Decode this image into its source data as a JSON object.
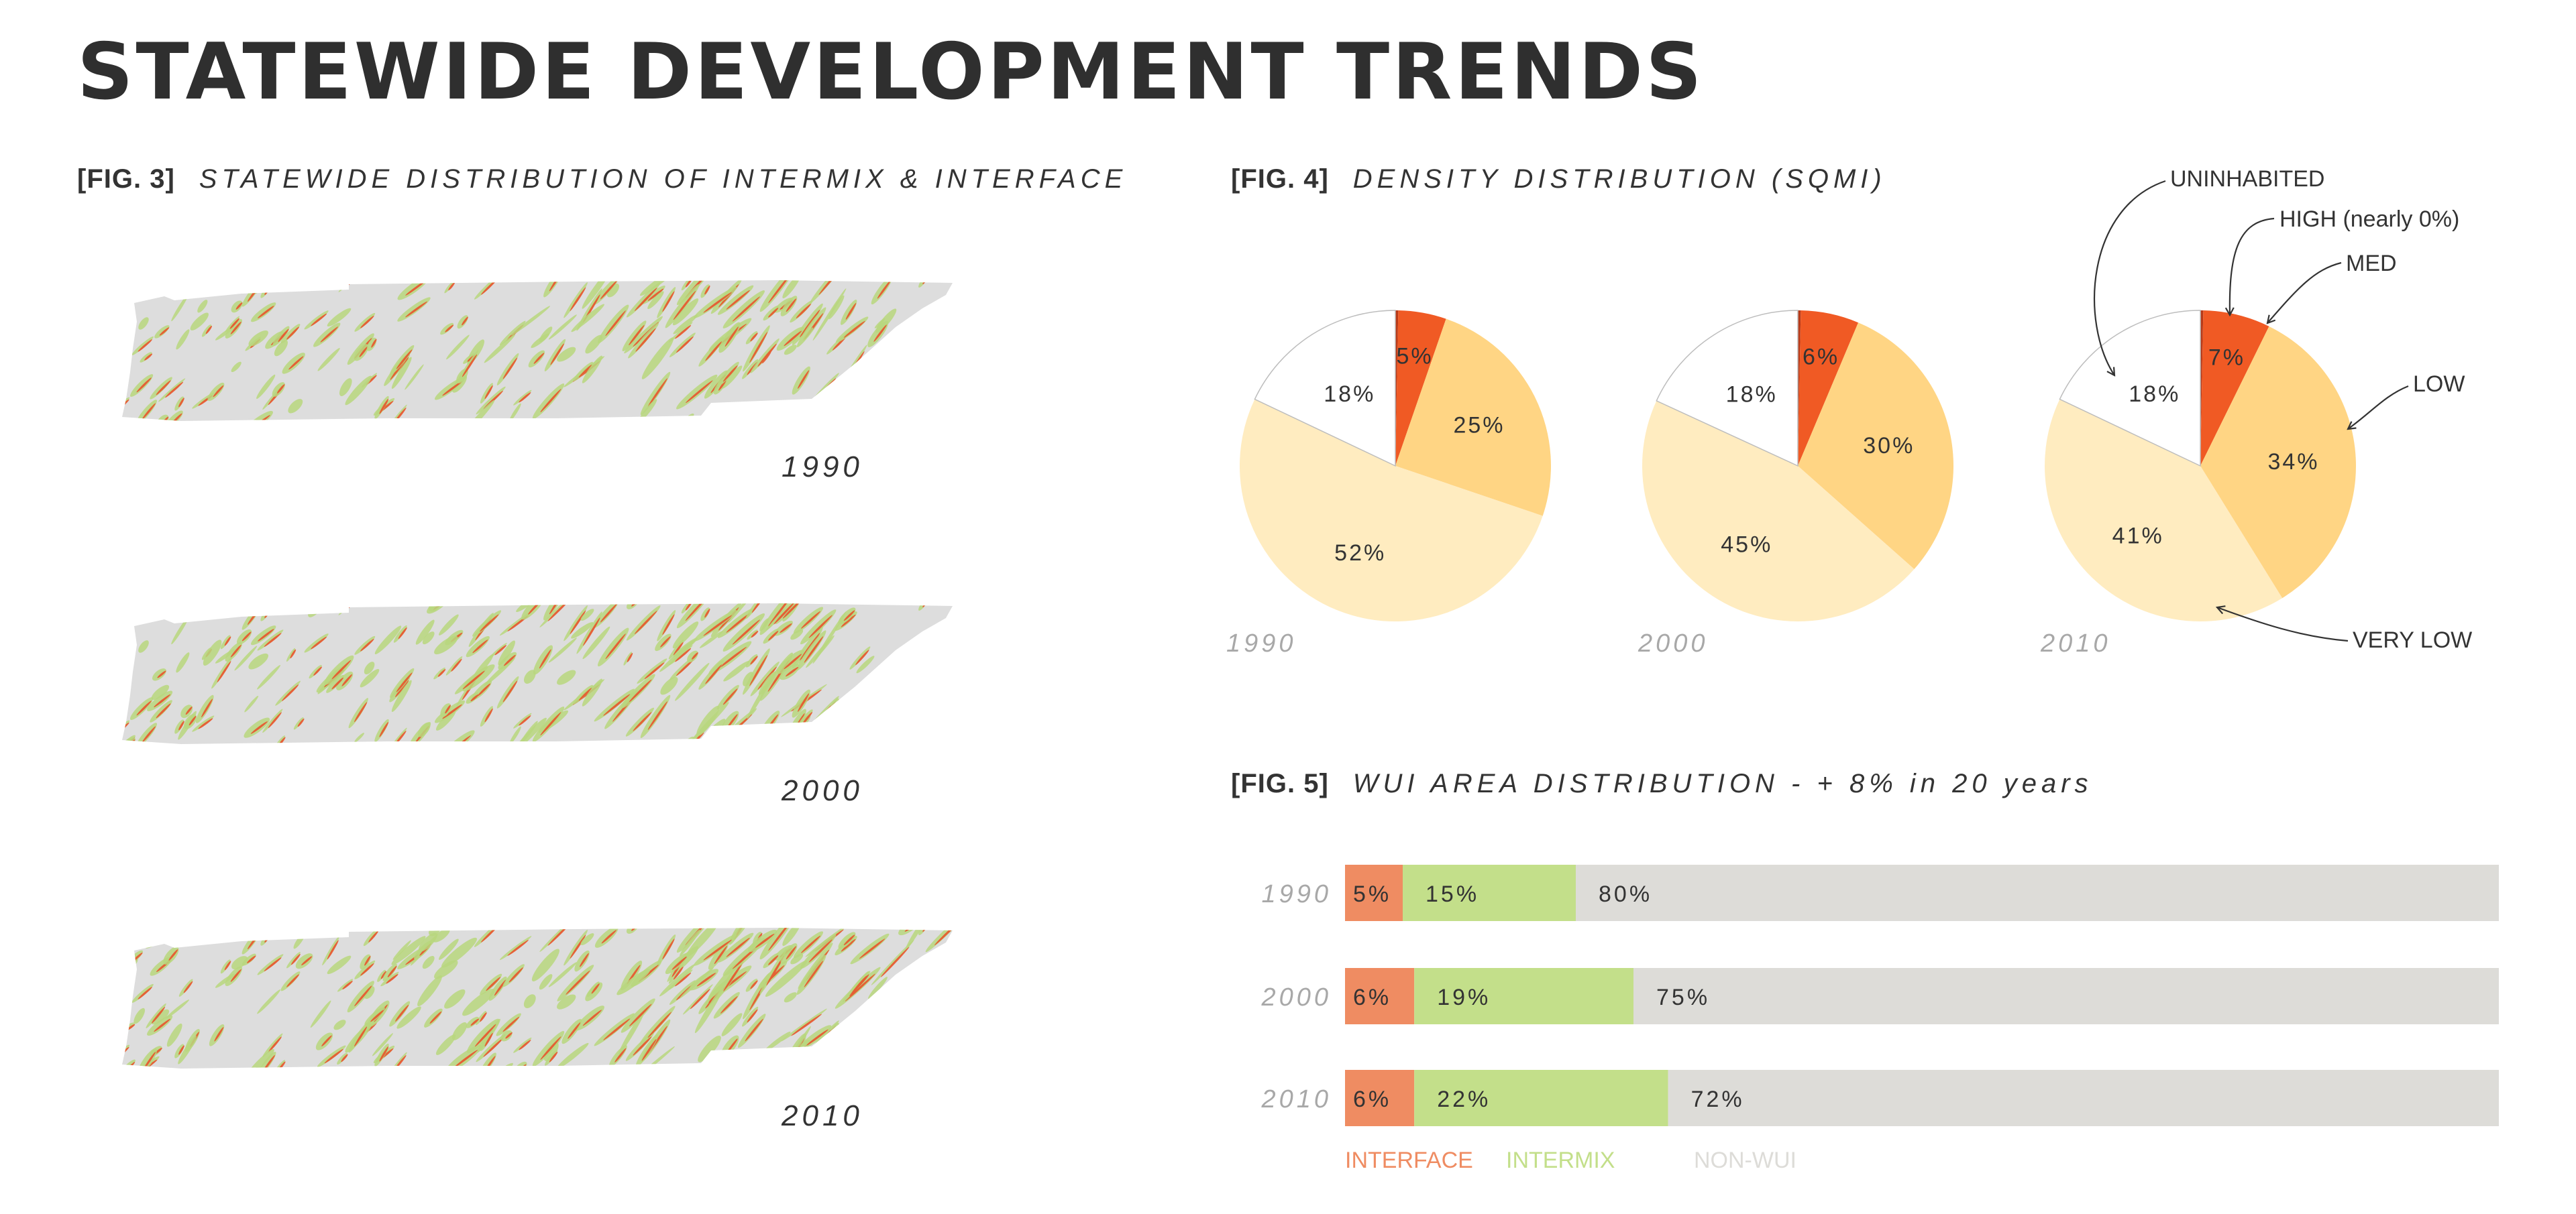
{
  "page": {
    "title": "STATEWIDE DEVELOPMENT TRENDS"
  },
  "fig3": {
    "number": "[FIG. 3]",
    "caption": "STATEWIDE DISTRIBUTION OF INTERMIX & INTERFACE",
    "maps": [
      {
        "year": "1990"
      },
      {
        "year": "2000"
      },
      {
        "year": "2010"
      }
    ],
    "colors": {
      "land": "#dddddd",
      "interface": "#e8542c",
      "intermix": "#b9d77e"
    }
  },
  "fig4": {
    "number": "[FIG. 4]",
    "caption": "DENSITY DISTRIBUTION (SQMI)",
    "annotations": {
      "uninhabited": "UNINHABITED",
      "high": "HIGH (nearly 0%)",
      "med": "MED",
      "low": "LOW",
      "very_low": "VERY LOW"
    }
  },
  "fig5": {
    "number": "[FIG. 5]",
    "caption": "WUI AREA DISTRIBUTION - + 8% in 20 years",
    "legend": [
      "INTERFACE",
      "INTERMIX",
      "NON-WUI"
    ]
  },
  "chart_data": [
    {
      "type": "pie",
      "id": "fig4-1990",
      "year_label": "1990",
      "slices": [
        {
          "category": "HIGH",
          "value": 0.3,
          "label": "",
          "color": "#b83a18"
        },
        {
          "category": "MED",
          "value": 5,
          "label": "5%",
          "color": "#f05a24"
        },
        {
          "category": "LOW",
          "value": 25,
          "label": "25%",
          "color": "#ffd584"
        },
        {
          "category": "VERY LOW",
          "value": 52,
          "label": "52%",
          "color": "#ffecc0"
        },
        {
          "category": "UNINHABITED",
          "value": 18,
          "label": "18%",
          "color": "#ffffff"
        }
      ]
    },
    {
      "type": "pie",
      "id": "fig4-2000",
      "year_label": "2000",
      "slices": [
        {
          "category": "HIGH",
          "value": 0.3,
          "label": "",
          "color": "#b83a18"
        },
        {
          "category": "MED",
          "value": 6,
          "label": "6%",
          "color": "#f05a24"
        },
        {
          "category": "LOW",
          "value": 30,
          "label": "30%",
          "color": "#ffd584"
        },
        {
          "category": "VERY LOW",
          "value": 45,
          "label": "45%",
          "color": "#ffecc0"
        },
        {
          "category": "UNINHABITED",
          "value": 18,
          "label": "18%",
          "color": "#ffffff"
        }
      ]
    },
    {
      "type": "pie",
      "id": "fig4-2010",
      "year_label": "2010",
      "slices": [
        {
          "category": "HIGH",
          "value": 0.3,
          "label": "",
          "color": "#b83a18"
        },
        {
          "category": "MED",
          "value": 7,
          "label": "7%",
          "color": "#f05a24"
        },
        {
          "category": "LOW",
          "value": 34,
          "label": "34%",
          "color": "#ffd584"
        },
        {
          "category": "VERY LOW",
          "value": 41,
          "label": "41%",
          "color": "#ffecc0"
        },
        {
          "category": "UNINHABITED",
          "value": 18,
          "label": "18%",
          "color": "#ffffff"
        }
      ]
    },
    {
      "type": "bar",
      "orientation": "horizontal-stacked",
      "id": "fig5",
      "categories": [
        "1990",
        "2000",
        "2010"
      ],
      "series": [
        {
          "name": "INTERFACE",
          "values": [
            5,
            6,
            6
          ],
          "labels": [
            "5%",
            "6%",
            "6%"
          ],
          "color": "#ef8c62"
        },
        {
          "name": "INTERMIX",
          "values": [
            15,
            19,
            22
          ],
          "labels": [
            "15%",
            "19%",
            "22%"
          ],
          "color": "#c3df8a"
        },
        {
          "name": "NON-WUI",
          "values": [
            80,
            75,
            72
          ],
          "labels": [
            "80%",
            "75%",
            "72%"
          ],
          "color": "#dddcd8"
        }
      ],
      "xlim": [
        0,
        100
      ]
    }
  ]
}
